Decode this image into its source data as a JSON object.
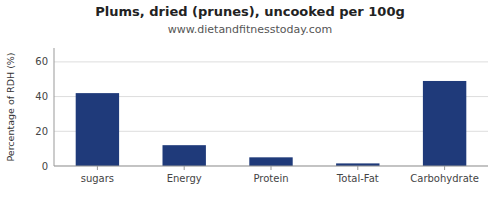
{
  "chart_data": {
    "type": "bar",
    "title": "Plums, dried (prunes), uncooked per 100g",
    "subtitle": "www.dietandfitnesstoday.com",
    "categories": [
      "sugars",
      "Energy",
      "Protein",
      "Total-Fat",
      "Carbohydrate"
    ],
    "values": [
      42,
      12,
      5,
      1.5,
      49
    ],
    "color": "#1f3a7a",
    "ylabel": "Percentage of RDH (%)",
    "ylim": [
      0,
      68
    ],
    "yticks": [
      0,
      20,
      40,
      60
    ],
    "grid": true
  }
}
